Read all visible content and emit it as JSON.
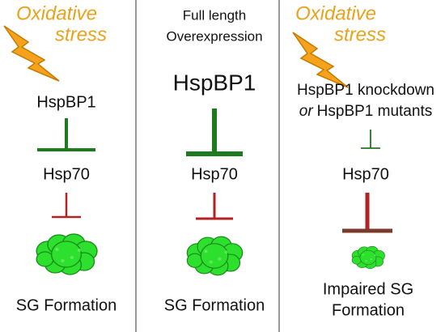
{
  "panels": [
    {
      "stress": [
        "Oxidative",
        "stress"
      ],
      "regulator": "HspBP1",
      "target": "Hsp70",
      "outcome": [
        "SG Formation"
      ]
    },
    {
      "header": [
        "Full length",
        "Overexpression"
      ],
      "regulator": "HspBP1",
      "target": "Hsp70",
      "outcome": [
        "SG Formation"
      ]
    },
    {
      "stress": [
        "Oxidative",
        "stress"
      ],
      "regulator_line1": "HspBP1 knockdown",
      "regulator_or": "or",
      "regulator_line2": "HspBP1 mutants",
      "target": "Hsp70",
      "outcome": [
        "Impaired SG",
        "Formation"
      ]
    }
  ]
}
